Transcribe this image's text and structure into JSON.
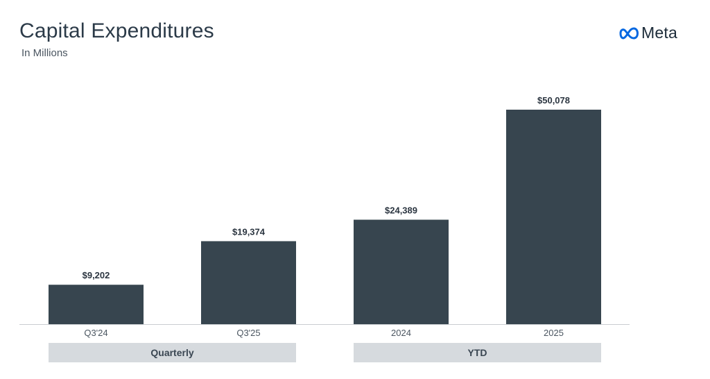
{
  "header": {
    "title": "Capital Expenditures",
    "subtitle": "In Millions"
  },
  "brand": {
    "name": "Meta",
    "icon": "meta-infinity-icon",
    "icon_color": "#0668E1"
  },
  "colors": {
    "bar": "#37454f",
    "band": "#d6dade"
  },
  "chart_data": {
    "type": "bar",
    "title": "Capital Expenditures",
    "subtitle": "In Millions",
    "xlabel": "",
    "ylabel": "",
    "ylim": [
      0,
      50078
    ],
    "grid": false,
    "categories": [
      "Q3'24",
      "Q3'25",
      "2024",
      "2025"
    ],
    "values": [
      9202,
      19374,
      24389,
      50078
    ],
    "value_labels": [
      "$9,202",
      "$19,374",
      "$24,389",
      "$50,078"
    ],
    "groups": [
      {
        "label": "Quarterly",
        "categories": [
          "Q3'24",
          "Q3'25"
        ]
      },
      {
        "label": "YTD",
        "categories": [
          "2024",
          "2025"
        ]
      }
    ]
  }
}
